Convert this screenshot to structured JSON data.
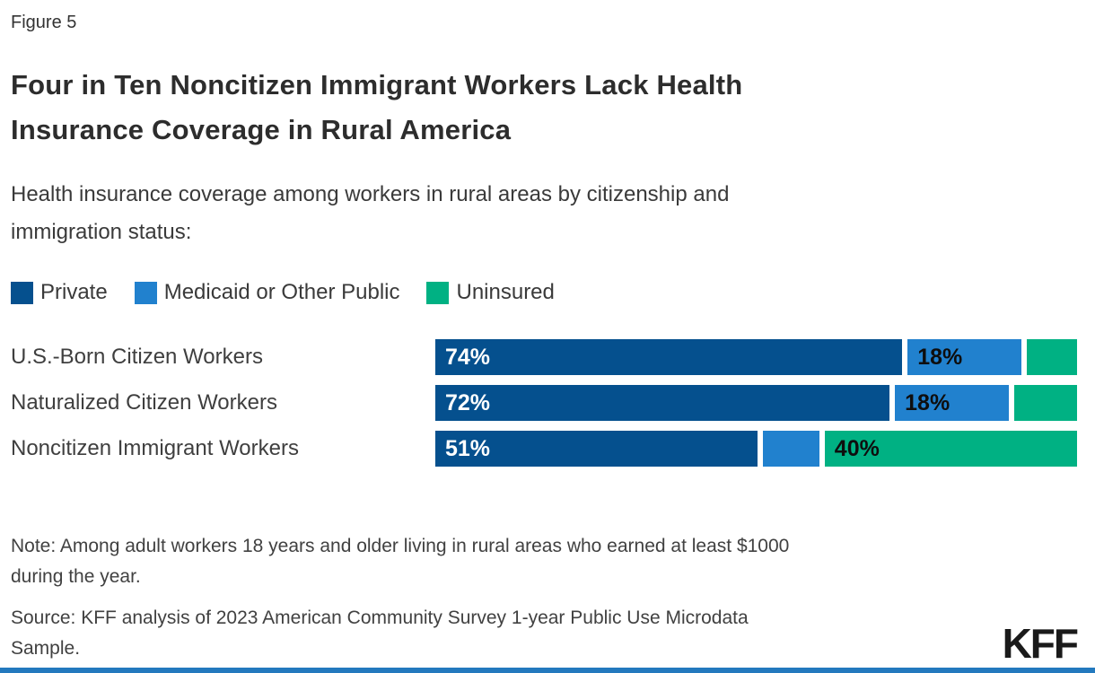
{
  "figure_label": "Figure 5",
  "title": "Four in Ten Noncitizen Immigrant Workers Lack Health\nInsurance Coverage in Rural America",
  "subtitle": "Health insurance coverage among workers in rural areas by citizenship and\nimmigration status:",
  "legend": [
    "Private",
    "Medicaid or Other Public",
    "Uninsured"
  ],
  "series_styles": {
    "Private": {
      "color": "#05508E",
      "label_color": "#FFFFFF"
    },
    "Medicaid or Other Public": {
      "color": "#2181CE",
      "label_color": "#0e0e0e"
    },
    "Uninsured": {
      "color": "#00B183",
      "label_color": "#0e0e0e"
    }
  },
  "chart_data": {
    "type": "bar",
    "orientation": "horizontal-stacked",
    "title": "Four in Ten Noncitizen Immigrant Workers Lack Health Insurance Coverage in Rural America",
    "categories": [
      "U.S.-Born Citizen Workers",
      "Naturalized Citizen Workers",
      "Noncitizen Immigrant Workers"
    ],
    "series": [
      {
        "name": "Private",
        "values": [
          74,
          72,
          51
        ],
        "color": "#05508E"
      },
      {
        "name": "Medicaid or Other Public",
        "values": [
          18,
          18,
          9
        ],
        "color": "#2181CE"
      },
      {
        "name": "Uninsured",
        "values": [
          8,
          10,
          40
        ],
        "color": "#00B183"
      }
    ],
    "value_unit": "%",
    "xlim": [
      0,
      100
    ],
    "legend_position": "top",
    "grid": false,
    "data_labels_shown": [
      "74%",
      "18%",
      "72%",
      "18%",
      "51%",
      "40%"
    ]
  },
  "rows": [
    {
      "label": "U.S.-Born Citizen Workers",
      "segments": [
        {
          "series": "Private",
          "value": 74,
          "label": "74%"
        },
        {
          "series": "Medicaid or Other Public",
          "value": 18,
          "label": "18%"
        },
        {
          "series": "Uninsured",
          "value": 8,
          "label": ""
        }
      ]
    },
    {
      "label": "Naturalized Citizen Workers",
      "segments": [
        {
          "series": "Private",
          "value": 72,
          "label": "72%"
        },
        {
          "series": "Medicaid or Other Public",
          "value": 18,
          "label": "18%"
        },
        {
          "series": "Uninsured",
          "value": 10,
          "label": ""
        }
      ]
    },
    {
      "label": "Noncitizen Immigrant Workers",
      "segments": [
        {
          "series": "Private",
          "value": 51,
          "label": "51%"
        },
        {
          "series": "Medicaid or Other Public",
          "value": 9,
          "label": ""
        },
        {
          "series": "Uninsured",
          "value": 40,
          "label": "40%"
        }
      ]
    }
  ],
  "note": "Note: Among adult workers 18 years and older living in rural areas who earned at least $1000\nduring the year.",
  "source": "Source: KFF analysis of 2023 American Community Survey 1-year Public Use Microdata\nSample.",
  "logo": "KFF",
  "footer_bar_color": "#2379BE"
}
